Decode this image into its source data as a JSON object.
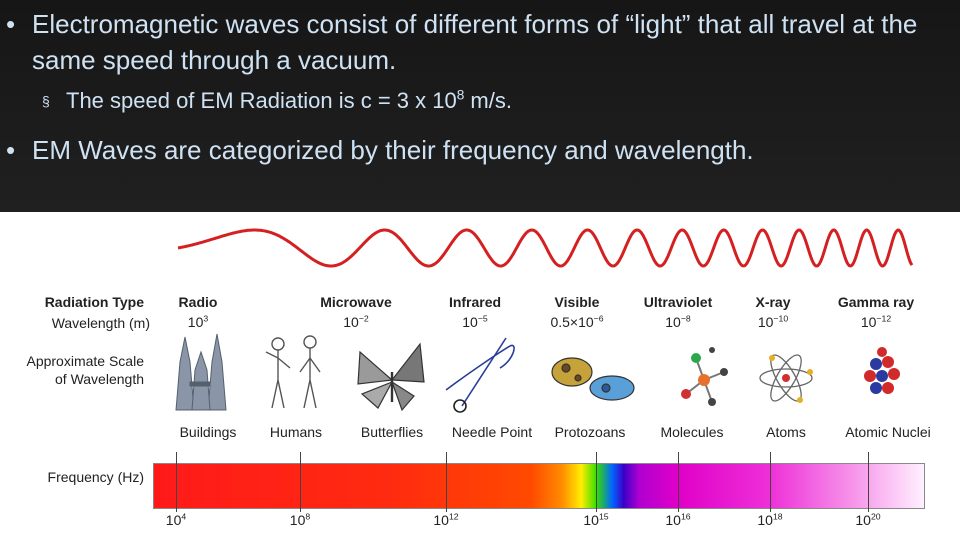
{
  "slide": {
    "bullet1": "Electromagnetic waves consist of different forms of “light” that all travel at the same speed through a vacuum.",
    "bullet2_prefix": "The speed of EM Radiation is c = 3 x 10",
    "bullet2_exp": "8",
    "bullet2_suffix": " m/s.",
    "bullet3": "EM Waves are categorized by their frequency and wavelength.",
    "bullet_glyph": "•",
    "sub_bullet_glyph": "§"
  },
  "diagram": {
    "row_labels": {
      "radiation_type": "Radiation Type",
      "wavelength": "Wavelength (m)",
      "scale_line1": "Approximate Scale",
      "scale_line2": "of Wavelength",
      "frequency": "Frequency (Hz)"
    },
    "types": [
      {
        "name": "Radio",
        "base": "10",
        "exp": "3",
        "object": "Buildings"
      },
      {
        "name": "Microwave",
        "base": "10",
        "exp": "−2",
        "object": "Humans"
      },
      {
        "name": "Infrared",
        "base": "10",
        "exp": "−5",
        "object": "Butterflies"
      },
      {
        "name": "Visible",
        "base": "0.5×10",
        "exp": "−6",
        "object": "Needle Point"
      },
      {
        "name": "Ultraviolet",
        "base": "10",
        "exp": "−8",
        "object": "Protozoans"
      },
      {
        "name": "X-ray",
        "base": "10",
        "exp": "−10",
        "object": "Molecules"
      },
      {
        "name": "Gamma ray",
        "base": "10",
        "exp": "−12",
        "object": "Atoms"
      }
    ],
    "last_object": "Atomic Nuclei",
    "frequencies": [
      {
        "base": "10",
        "exp": "4"
      },
      {
        "base": "10",
        "exp": "8"
      },
      {
        "base": "10",
        "exp": "12"
      },
      {
        "base": "10",
        "exp": "15"
      },
      {
        "base": "10",
        "exp": "16"
      },
      {
        "base": "10",
        "exp": "18"
      },
      {
        "base": "10",
        "exp": "20"
      }
    ],
    "colors": {
      "wave": "#d42020",
      "label_text": "#222222",
      "slide_text": "#cfe2f3"
    }
  }
}
